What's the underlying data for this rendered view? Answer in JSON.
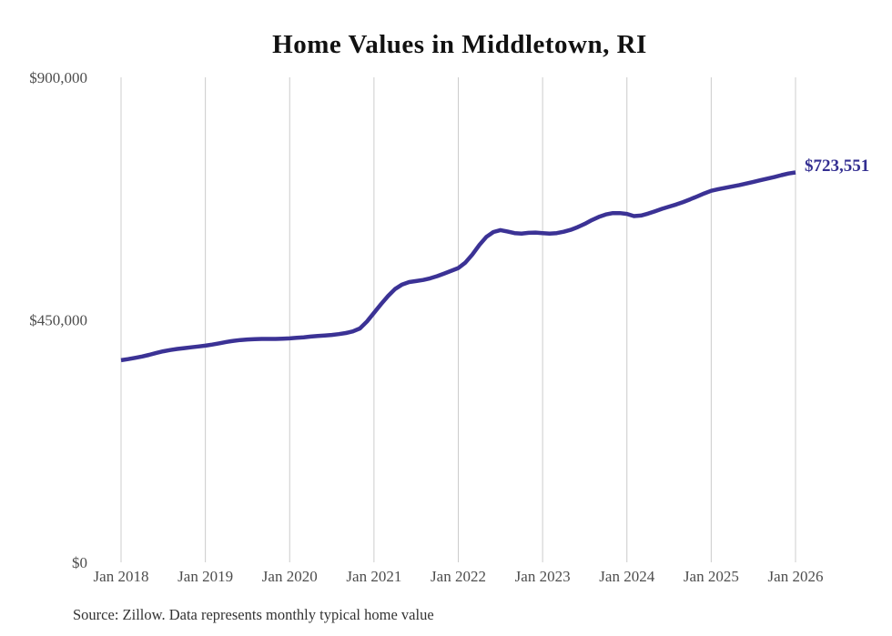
{
  "title": "Home Values in Middletown, RI",
  "source": {
    "text": "Source: Zillow. Data represents monthly typical home value"
  },
  "end_label": "$723,551",
  "colors": {
    "line": "#3b3295",
    "end_label": "#332e91",
    "gridline": "#cccccc",
    "axis_text": "#4d4d4d",
    "title_text": "#111111",
    "source_text": "#333333",
    "background": "#ffffff"
  },
  "chart_data": {
    "type": "line",
    "title": "Home Values in Middletown, RI",
    "xlabel": "",
    "ylabel": "",
    "ylim": [
      0,
      900000
    ],
    "grid": "vertical-only",
    "legend": "none",
    "y_ticks": [
      0,
      450000,
      900000
    ],
    "y_tick_labels": [
      "$0",
      "$450,000",
      "$900,000"
    ],
    "x_tick_labels": [
      "Jan 2018",
      "Jan 2019",
      "Jan 2020",
      "Jan 2021",
      "Jan 2022",
      "Jan 2023",
      "Jan 2024",
      "Jan 2025",
      "Jan 2026"
    ],
    "x_range": {
      "start": "Jan 2018",
      "end": "Jan 2026",
      "interval": "monthly"
    },
    "final_value": 723551,
    "values": [
      375000,
      377000,
      379500,
      382000,
      385000,
      388500,
      391500,
      394000,
      396000,
      397500,
      399000,
      400500,
      402000,
      404000,
      406500,
      409000,
      411000,
      412500,
      413500,
      414000,
      414500,
      414500,
      414500,
      415000,
      415500,
      416500,
      417500,
      419000,
      420000,
      421000,
      422000,
      423500,
      425500,
      428500,
      434000,
      447000,
      463000,
      479000,
      494000,
      507000,
      515500,
      520000,
      522000,
      524000,
      527000,
      531000,
      536000,
      541000,
      546000,
      556000,
      571000,
      589000,
      604000,
      613000,
      616500,
      614000,
      611000,
      610000,
      611500,
      612000,
      611000,
      610000,
      611000,
      613500,
      617000,
      622000,
      628000,
      635000,
      641000,
      645500,
      648000,
      648000,
      646500,
      642500,
      643500,
      647000,
      651500,
      656000,
      660000,
      664000,
      668500,
      673500,
      679000,
      684500,
      689500,
      692500,
      695000,
      697500,
      700000,
      703000,
      706000,
      709000,
      712000,
      715000,
      718500,
      721500,
      723551
    ]
  }
}
